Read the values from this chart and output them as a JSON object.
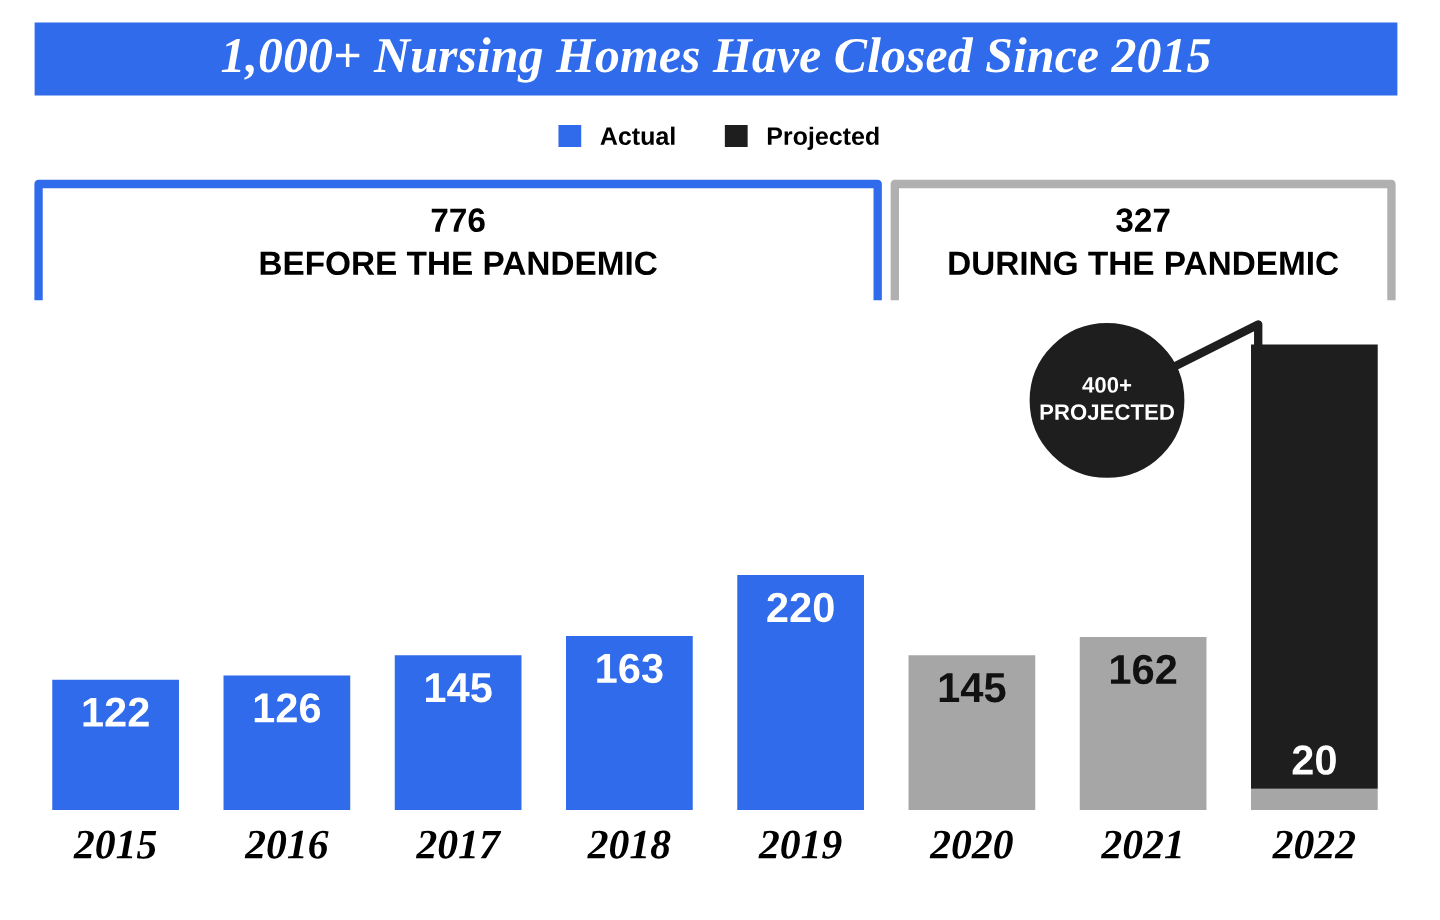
{
  "chart_data": {
    "type": "bar",
    "title": "1,000+ Nursing Homes Have Closed Since 2015",
    "categories": [
      "2015",
      "2016",
      "2017",
      "2018",
      "2019",
      "2020",
      "2021",
      "2022"
    ],
    "stacked": true,
    "legend": "top",
    "series": [
      {
        "name": "Actual",
        "color": "#2f6bea",
        "values": [
          122,
          126,
          145,
          163,
          220,
          null,
          null,
          null
        ],
        "value_labels": [
          "122",
          "126",
          "145",
          "163",
          "220",
          null,
          null,
          null
        ]
      },
      {
        "color": "#a6a6a6",
        "values": [
          null,
          null,
          null,
          null,
          null,
          145,
          162,
          20
        ],
        "value_labels": [
          null,
          null,
          null,
          null,
          null,
          "145",
          "162",
          "20"
        ]
      },
      {
        "name": "Projected",
        "color": "#1e1e1e",
        "values": [
          null,
          null,
          null,
          null,
          null,
          null,
          null,
          416
        ],
        "value_labels": [
          null,
          null,
          null,
          null,
          null,
          null,
          null,
          null
        ]
      }
    ],
    "annotations": [
      "776\nBEFORE THE PANDEMIC",
      "327\nDURING THE PANDEMIC",
      "400+\nPROJECTED"
    ]
  }
}
